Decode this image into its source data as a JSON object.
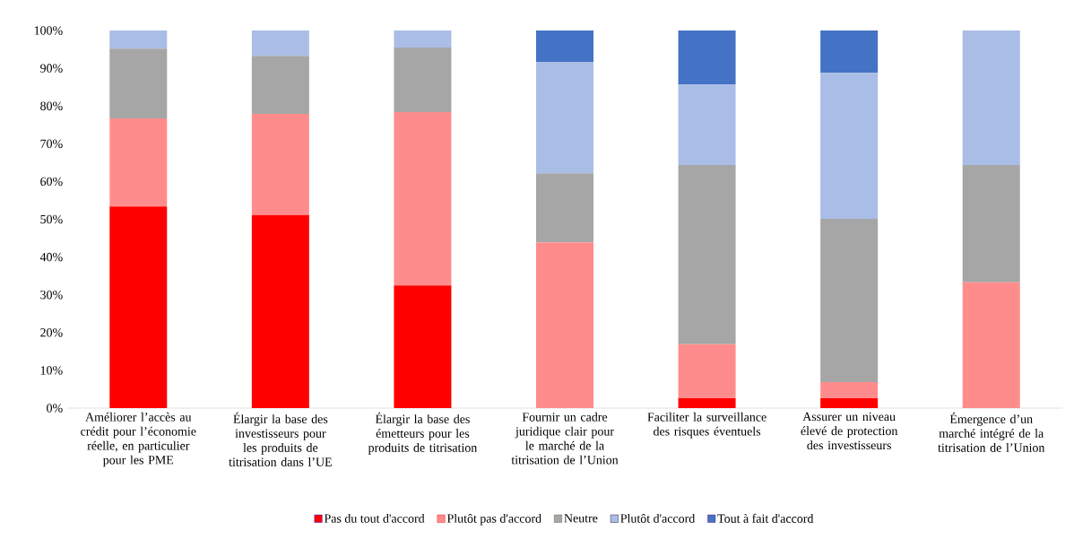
{
  "chart_data": {
    "type": "bar",
    "stacked": true,
    "categories": [
      "Améliorer l’accès au crédit pour l’économie réelle, en particulier pour les PME",
      "Élargir la base des investisseurs pour les produits de titrisation dans l’UE",
      "Élargir la base des émetteurs pour les produits de titrisation",
      "Fournir un cadre juridique clair pour le marché de la titrisation de l’Union",
      "Faciliter la surveillance des risques éventuels",
      "Assurer un niveau élevé de protection des investisseurs",
      "Émergence d’un marché intégré de la titrisation de l’Union"
    ],
    "series": [
      {
        "name": "Pas du tout d'accord",
        "color": "#ff0000",
        "values": [
          53.4,
          51.1,
          32.5,
          0,
          2.6,
          2.6,
          0
        ]
      },
      {
        "name": "Plutôt pas d'accord",
        "color": "#ff8c8c",
        "values": [
          23.3,
          26.8,
          45.9,
          43.9,
          14.3,
          4.3,
          33.3
        ]
      },
      {
        "name": "Neutre",
        "color": "#a6a6a6",
        "values": [
          18.5,
          15.4,
          17.1,
          18.3,
          47.5,
          43.2,
          31.1
        ]
      },
      {
        "name": "Plutôt d'accord",
        "color": "#a9bde6",
        "values": [
          4.8,
          6.7,
          4.5,
          29.5,
          21.3,
          38.7,
          35.6
        ]
      },
      {
        "name": "Tout à fait d'accord",
        "color": "#4472c4",
        "values": [
          0,
          0,
          0,
          8.3,
          14.3,
          11.2,
          0
        ]
      }
    ],
    "ylim": [
      0,
      100
    ],
    "yticks": [
      {
        "value": 0,
        "label": "0%"
      },
      {
        "value": 10,
        "label": "10%"
      },
      {
        "value": 20,
        "label": "20%"
      },
      {
        "value": 30,
        "label": "30%"
      },
      {
        "value": 40,
        "label": "40%"
      },
      {
        "value": 50,
        "label": "50%"
      },
      {
        "value": 60,
        "label": "60%"
      },
      {
        "value": 70,
        "label": "70%"
      },
      {
        "value": 80,
        "label": "80%"
      },
      {
        "value": 90,
        "label": "90%"
      },
      {
        "value": 100,
        "label": "100%"
      }
    ],
    "legend": "bottom"
  }
}
